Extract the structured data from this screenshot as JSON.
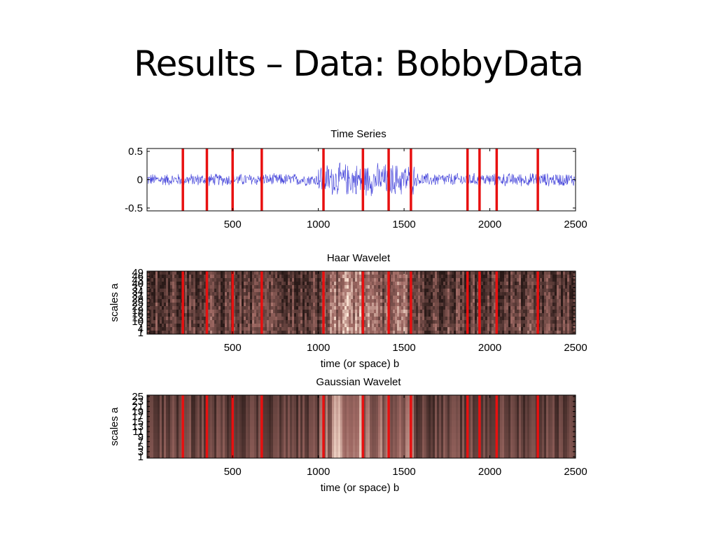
{
  "slide": {
    "title": "Results – Data: BobbyData"
  },
  "colors": {
    "signal": "#3a3ad8",
    "marker": "#e81010",
    "axis": "#000000",
    "scalogram_dark": "#2a1a18",
    "scalogram_mid": "#a06a64",
    "scalogram_light": "#ffe8d8"
  },
  "chart_data": [
    {
      "type": "line",
      "title": "Time Series",
      "xlabel": "",
      "ylabel": "",
      "xlim": [
        1,
        2500
      ],
      "ylim": [
        -0.55,
        0.55
      ],
      "xticks": [
        500,
        1000,
        1500,
        2000,
        2500
      ],
      "yticks": [
        0.5,
        0,
        -0.5
      ],
      "ytick_labels": [
        "0.5",
        "0",
        "-0.5"
      ],
      "series": [
        {
          "style": "noise-envelope",
          "segments": [
            {
              "x": [
                1,
                1000
              ],
              "amplitude": 0.12
            },
            {
              "x": [
                1000,
                1560
              ],
              "amplitude": 0.32
            },
            {
              "x": [
                1560,
                2500
              ],
              "amplitude": 0.13
            }
          ]
        }
      ],
      "markers_x": [
        210,
        350,
        500,
        670,
        1030,
        1260,
        1410,
        1540,
        1870,
        1940,
        2040,
        2280
      ]
    },
    {
      "type": "heatmap",
      "title": "Haar Wavelet",
      "xlabel": "time (or space) b",
      "ylabel": "scales a",
      "xlim": [
        1,
        2500
      ],
      "xticks": [
        500,
        1000,
        1500,
        2000,
        2500
      ],
      "ytick_labels": [
        "49",
        "46",
        "43",
        "40",
        "37",
        "34",
        "31",
        "28",
        "25",
        "22",
        "19",
        "16",
        "13",
        "10",
        "7",
        "4",
        "1"
      ],
      "markers_x": [
        210,
        350,
        500,
        670,
        1030,
        1260,
        1410,
        1540,
        1870,
        1940,
        2040,
        2280
      ]
    },
    {
      "type": "heatmap",
      "title": "Gaussian Wavelet",
      "xlabel": "time (or space) b",
      "ylabel": "scales a",
      "xlim": [
        1,
        2500
      ],
      "xticks": [
        500,
        1000,
        1500,
        2000,
        2500
      ],
      "ytick_labels": [
        "25",
        "23",
        "21",
        "19",
        "17",
        "15",
        "13",
        "11",
        "9",
        "7",
        "5",
        "3",
        "1"
      ],
      "markers_x": [
        210,
        350,
        500,
        670,
        1030,
        1260,
        1410,
        1540,
        1870,
        1940,
        2040,
        2280
      ]
    }
  ]
}
